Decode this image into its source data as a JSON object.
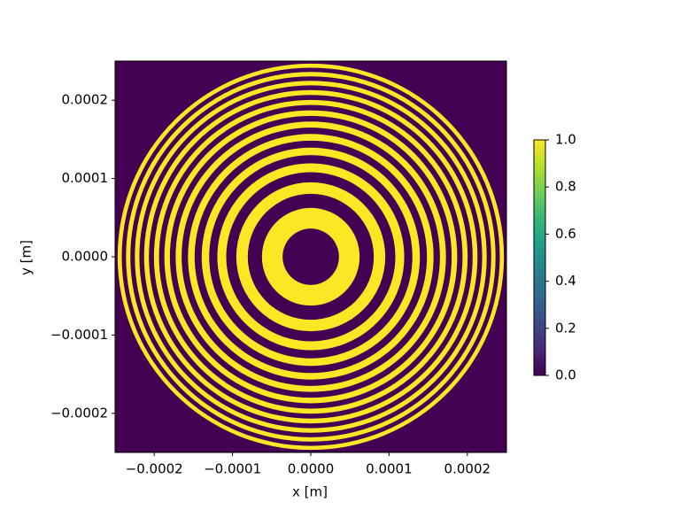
{
  "chart_data": {
    "type": "image",
    "xlabel": "x [m]",
    "ylabel": "y [m]",
    "xlim": [
      -0.00025,
      0.00025
    ],
    "ylim": [
      -0.00025,
      0.00025
    ],
    "xticks": [
      {
        "value": -0.0002,
        "label": "−0.0002"
      },
      {
        "value": -0.0001,
        "label": "−0.0001"
      },
      {
        "value": 0,
        "label": "0.0000"
      },
      0.0001,
      0.0002
    ],
    "yticks": [
      {
        "value": -0.0002,
        "label": "−0.0002"
      },
      {
        "value": -0.0001,
        "label": "−0.0001"
      },
      {
        "value": 0,
        "label": "0.0000"
      },
      0.0001,
      0.0002
    ],
    "background_value": 0,
    "ring_value": 1,
    "rings": [
      [
        3.6e-05,
        6.24e-05
      ],
      [
        8.05e-05,
        9.52e-05
      ],
      [
        0.000108,
        0.0001194
      ],
      [
        0.0001298,
        0.0001394
      ],
      [
        0.0001484,
        0.0001569
      ],
      [
        0.000165,
        0.0001727
      ],
      [
        0.00018,
        0.0001871
      ],
      [
        0.0001939,
        0.0002004
      ],
      [
        0.0002068,
        0.000213
      ],
      [
        0.000219,
        0.0002248
      ],
      [
        0.0002305,
        0.0002361
      ],
      [
        0.0002415,
        0.0002468
      ]
    ],
    "colorbar": {
      "lim": [
        0,
        1
      ],
      "ticks": [
        {
          "value": 0,
          "label": "0.0"
        },
        0.2,
        0.4,
        0.6,
        0.8,
        {
          "value": 1,
          "label": "1.0"
        }
      ]
    },
    "colormap": [
      "#440154",
      "#482878",
      "#3e4989",
      "#31688e",
      "#26828e",
      "#1f9e89",
      "#35b779",
      "#6ece58",
      "#b5de2b",
      "#fde725"
    ]
  }
}
